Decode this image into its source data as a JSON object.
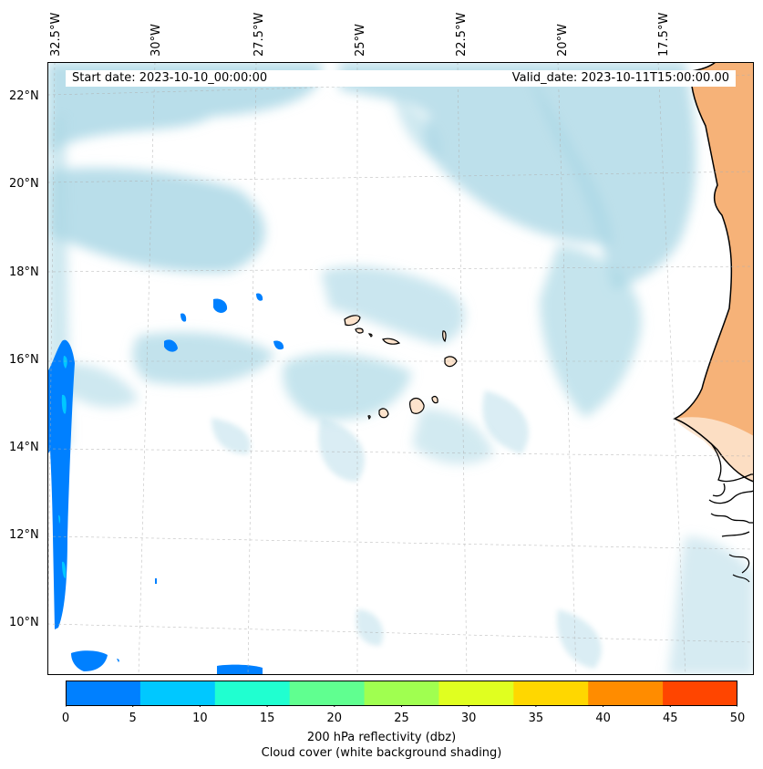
{
  "map": {
    "start_label": "Start date: 2023-10-10_00:00:00",
    "valid_label": "Valid_date: 2023-10-11T15:00:00.00",
    "lon_labels": [
      "32.5°W",
      "30°W",
      "27.5°W",
      "25°W",
      "22.5°W",
      "20°W",
      "17.5°W"
    ],
    "lat_labels": [
      "22°N",
      "20°N",
      "18°N",
      "16°N",
      "14°N",
      "12°N",
      "10°N"
    ],
    "features": [
      "Cape Verde islands",
      "West African coastline"
    ]
  },
  "colorbar": {
    "ticks": [
      "0",
      "5",
      "10",
      "15",
      "20",
      "25",
      "30",
      "35",
      "40",
      "45",
      "50"
    ],
    "colors": [
      "#0080ff",
      "#00c8ff",
      "#20ffd0",
      "#60ff90",
      "#a0ff50",
      "#e0ff20",
      "#ffd700",
      "#ff8c00",
      "#ff4500"
    ],
    "title_line1": "200 hPa reflectivity (dbz)",
    "title_line2": "Cloud cover (white background shading)"
  },
  "colors": {
    "cloud": "#add8e6",
    "land": "#f4a460",
    "reflectivity_low": "#0080ff",
    "reflectivity_mid": "#00c8ff"
  }
}
